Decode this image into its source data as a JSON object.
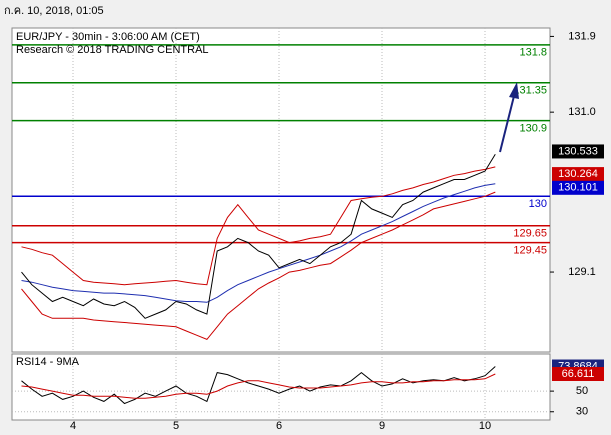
{
  "timestamp": "ก.ค. 10, 2018, 01:05",
  "chart_data": [
    {
      "type": "line",
      "title": "EUR/JPY - 30min - 3:06:00 AM (CET)",
      "subtitle": "Research © 2018 TRADING CENTRAL",
      "ylim": [
        128.15,
        132.0
      ],
      "yticks": [
        131.9,
        {
          "value": 131,
          "label": "131.0"
        },
        129.1
      ],
      "grid": true,
      "series": [
        {
          "color": "#cc0000",
          "values": [
            129.4,
            129.37,
            129.33,
            129.3,
            129.2,
            129.1,
            129.0,
            128.98,
            128.97,
            128.96,
            128.95,
            128.96,
            128.97,
            128.98,
            128.99,
            129.0,
            128.98,
            128.96,
            128.95,
            129.5,
            129.75,
            129.9,
            129.75,
            129.6,
            129.55,
            129.5,
            129.45,
            129.47,
            129.5,
            129.52,
            129.55,
            129.75,
            129.95,
            129.97,
            129.99,
            130.0,
            130.03,
            130.07,
            130.1,
            130.14,
            130.17,
            130.21,
            130.25,
            130.27,
            130.3,
            130.32,
            130.35
          ]
        },
        {
          "color": "#cc0000",
          "values": [
            128.9,
            128.75,
            128.6,
            128.55,
            128.55,
            128.55,
            128.55,
            128.53,
            128.52,
            128.51,
            128.5,
            128.49,
            128.48,
            128.47,
            128.46,
            128.45,
            128.4,
            128.35,
            128.3,
            128.45,
            128.6,
            128.7,
            128.8,
            128.9,
            128.97,
            129.03,
            129.1,
            129.12,
            129.15,
            129.18,
            129.2,
            129.28,
            129.36,
            129.45,
            129.5,
            129.55,
            129.6,
            129.66,
            129.72,
            129.78,
            129.85,
            129.88,
            129.91,
            129.94,
            129.97,
            130.0,
            130.05
          ]
        },
        {
          "color": "#1f2fb0",
          "values": [
            129.0,
            128.98,
            128.95,
            128.92,
            128.9,
            128.88,
            128.87,
            128.86,
            128.85,
            128.85,
            128.84,
            128.83,
            128.82,
            128.8,
            128.78,
            128.76,
            128.75,
            128.75,
            128.74,
            128.8,
            128.88,
            128.95,
            129.0,
            129.05,
            129.1,
            129.14,
            129.18,
            129.22,
            129.26,
            129.3,
            129.35,
            129.4,
            129.47,
            129.55,
            129.6,
            129.65,
            129.7,
            129.76,
            129.82,
            129.88,
            129.93,
            129.98,
            130.02,
            130.06,
            130.1,
            130.13,
            130.15
          ]
        },
        {
          "color": "#000000",
          "values": [
            129.1,
            128.95,
            128.85,
            128.75,
            128.8,
            128.75,
            128.7,
            128.78,
            128.72,
            128.7,
            128.75,
            128.68,
            128.55,
            128.6,
            128.65,
            128.75,
            128.72,
            128.65,
            128.6,
            129.35,
            129.4,
            129.5,
            129.45,
            129.35,
            129.3,
            129.15,
            129.2,
            129.25,
            129.2,
            129.3,
            129.4,
            129.45,
            129.55,
            129.95,
            129.85,
            129.8,
            129.75,
            129.9,
            129.95,
            130.05,
            130.1,
            130.15,
            130.2,
            130.2,
            130.25,
            130.3,
            130.5
          ]
        }
      ],
      "levels": [
        {
          "value": 131.8,
          "color": "#008000"
        },
        {
          "value": 131.35,
          "color": "#008000"
        },
        {
          "value": 130.9,
          "color": "#008000"
        },
        {
          "value": 130,
          "color": "#0000cc"
        },
        {
          "value": 129.65,
          "color": "#cc0000"
        },
        {
          "value": 129.45,
          "color": "#cc0000"
        }
      ],
      "price_tags": [
        {
          "value": 130.533,
          "color": "#000000"
        },
        {
          "value": 130.264,
          "color": "#cc0000"
        },
        {
          "value": 130.101,
          "color": "#0000cc"
        }
      ]
    },
    {
      "type": "line",
      "title": "RSI14 - 9MA",
      "ylim": [
        22,
        86
      ],
      "yticks": [
        50,
        30
      ],
      "grid": true,
      "categories": [
        null,
        null,
        null,
        null,
        null,
        "4",
        null,
        null,
        null,
        null,
        null,
        null,
        null,
        null,
        null,
        "5",
        null,
        null,
        null,
        null,
        null,
        null,
        null,
        null,
        null,
        "6",
        null,
        null,
        null,
        null,
        null,
        null,
        null,
        null,
        null,
        "9",
        null,
        null,
        null,
        null,
        null,
        null,
        null,
        null,
        null,
        "10",
        null
      ],
      "series": [
        {
          "color": "#000000",
          "values": [
            60,
            52,
            45,
            48,
            42,
            45,
            50,
            44,
            40,
            47,
            38,
            42,
            48,
            45,
            50,
            55,
            48,
            45,
            40,
            68,
            66,
            62,
            58,
            55,
            52,
            48,
            52,
            55,
            50,
            54,
            56,
            55,
            60,
            68,
            60,
            55,
            57,
            62,
            58,
            60,
            61,
            60,
            63,
            60,
            62,
            65,
            73.87
          ]
        },
        {
          "color": "#cc0000",
          "values": [
            55,
            54,
            52,
            50,
            48,
            46,
            46,
            45,
            45,
            45,
            44,
            43,
            43,
            44,
            45,
            47,
            48,
            48,
            47,
            50,
            55,
            58,
            60,
            60,
            58,
            56,
            54,
            53,
            53,
            53,
            54,
            55,
            56,
            58,
            59,
            59,
            58,
            58,
            59,
            59,
            60,
            60,
            61,
            61,
            61,
            62,
            66.6
          ]
        }
      ],
      "price_tags": [
        {
          "value": 73.8684,
          "color": "#1a237e"
        },
        {
          "value": 66.611,
          "color": "#cc0000"
        }
      ]
    }
  ]
}
